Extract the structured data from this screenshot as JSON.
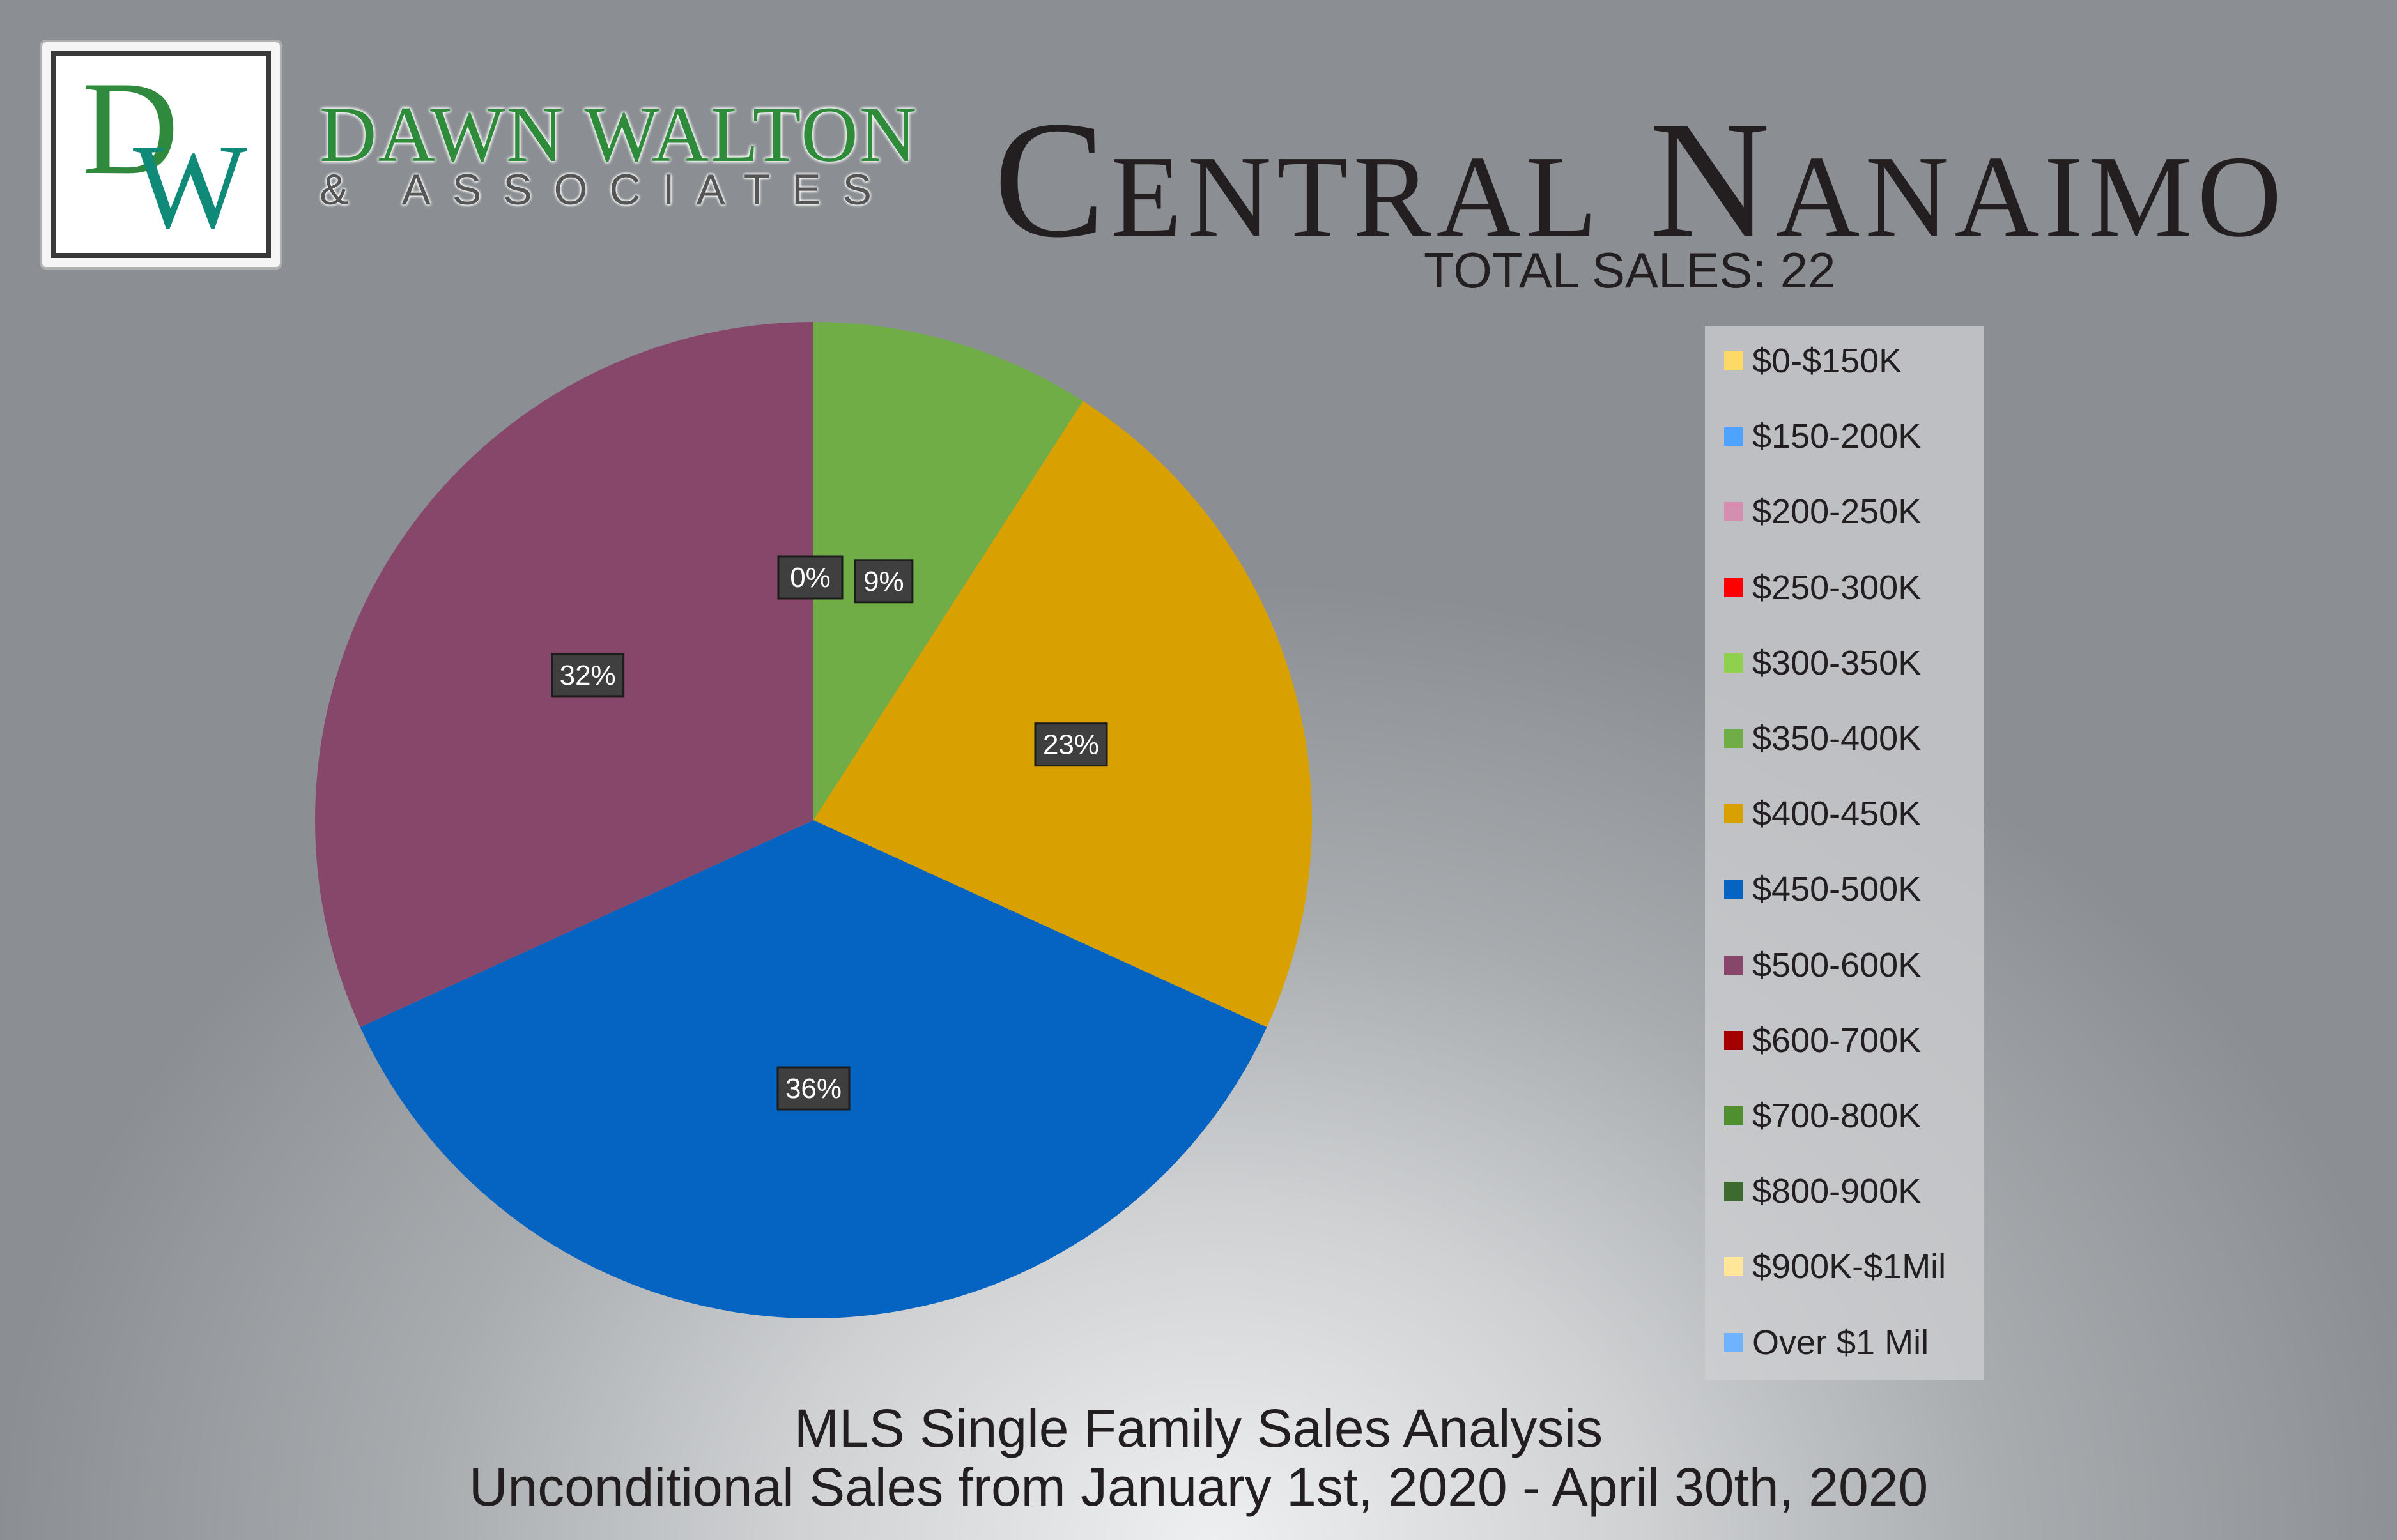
{
  "logo": {
    "monogram_d": "D",
    "monogram_w": "W"
  },
  "brand": {
    "name": "DAWN WALTON",
    "sub": "& ASSOCIATES"
  },
  "title": "Central Nanaimo",
  "total_sales": {
    "label": "TOTAL SALES:",
    "value": "22"
  },
  "footer": {
    "line1": "MLS Single Family Sales Analysis",
    "line2": "Unconditional Sales from January 1st, 2020 - April 30th, 2020"
  },
  "chart_data": {
    "type": "pie",
    "title": "",
    "legend_position": "right",
    "categories": [
      "$0-$150K",
      "$150-200K",
      "$200-250K",
      "$250-300K",
      "$300-350K",
      "$350-400K",
      "$400-450K",
      "$450-500K",
      "$500-600K",
      "$600-700K",
      "$700-800K",
      "$800-900K",
      "$900K-$1Mil",
      "Over $1 Mil"
    ],
    "colors": [
      "#ffd966",
      "#4da3ff",
      "#d48fb0",
      "#ff0000",
      "#8fd14f",
      "#70ad47",
      "#d8a000",
      "#0563c1",
      "#87476a",
      "#a50000",
      "#4f8f2f",
      "#3d6a2e",
      "#ffe699",
      "#6fb3ff"
    ],
    "values": [
      0,
      0,
      0,
      0,
      0,
      9.09,
      22.73,
      36.36,
      31.82,
      0,
      0,
      0,
      0,
      0
    ],
    "labels": [
      "",
      "",
      "",
      "",
      "0%",
      "9%",
      "23%",
      "36%",
      "32%",
      "",
      "",
      "",
      "",
      ""
    ]
  }
}
